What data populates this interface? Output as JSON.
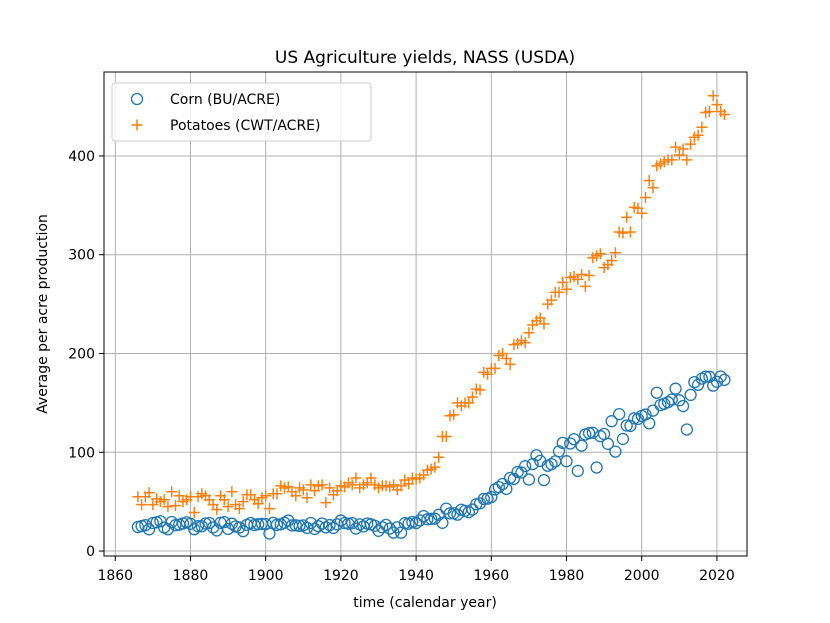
{
  "chart_data": {
    "type": "scatter",
    "title": "US Agriculture yields, NASS (USDA)",
    "xlabel": "time (calendar year)",
    "ylabel": "Average per acre production",
    "xlim": [
      1857,
      2028
    ],
    "ylim": [
      -5,
      485
    ],
    "xticks": [
      1860,
      1880,
      1900,
      1920,
      1940,
      1960,
      1980,
      2000,
      2020
    ],
    "yticks": [
      0,
      100,
      200,
      300,
      400
    ],
    "grid": true,
    "legend_position": "upper-left",
    "series": [
      {
        "name": "Corn (BU/ACRE)",
        "marker": "circle",
        "color": "#1f77b4",
        "x": [
          1866,
          1867,
          1868,
          1869,
          1870,
          1871,
          1872,
          1873,
          1874,
          1875,
          1876,
          1877,
          1878,
          1879,
          1880,
          1881,
          1882,
          1883,
          1884,
          1885,
          1886,
          1887,
          1888,
          1889,
          1890,
          1891,
          1892,
          1893,
          1894,
          1895,
          1896,
          1897,
          1898,
          1899,
          1900,
          1901,
          1902,
          1903,
          1904,
          1905,
          1906,
          1907,
          1908,
          1909,
          1910,
          1911,
          1912,
          1913,
          1914,
          1915,
          1916,
          1917,
          1918,
          1919,
          1920,
          1921,
          1922,
          1923,
          1924,
          1925,
          1926,
          1927,
          1928,
          1929,
          1930,
          1931,
          1932,
          1933,
          1934,
          1935,
          1936,
          1937,
          1938,
          1939,
          1940,
          1941,
          1942,
          1943,
          1944,
          1945,
          1946,
          1947,
          1948,
          1949,
          1950,
          1951,
          1952,
          1953,
          1954,
          1955,
          1956,
          1957,
          1958,
          1959,
          1960,
          1961,
          1962,
          1963,
          1964,
          1965,
          1966,
          1967,
          1968,
          1969,
          1970,
          1971,
          1972,
          1973,
          1974,
          1975,
          1976,
          1977,
          1978,
          1979,
          1980,
          1981,
          1982,
          1983,
          1984,
          1985,
          1986,
          1987,
          1988,
          1989,
          1990,
          1991,
          1992,
          1993,
          1994,
          1995,
          1996,
          1997,
          1998,
          1999,
          2000,
          2001,
          2002,
          2003,
          2004,
          2005,
          2006,
          2007,
          2008,
          2009,
          2010,
          2011,
          2012,
          2013,
          2014,
          2015,
          2016,
          2017,
          2018,
          2019,
          2020,
          2021,
          2022
        ],
        "y": [
          24.3,
          25.3,
          26.2,
          22.0,
          28.4,
          29.1,
          30.2,
          23.8,
          22.1,
          29.4,
          26.2,
          26.7,
          27.9,
          29.2,
          27.6,
          22.1,
          25.2,
          25.1,
          27.9,
          28.4,
          23.9,
          20.9,
          28.6,
          29.3,
          22.5,
          27.7,
          24.9,
          23.8,
          20.1,
          26.5,
          28.4,
          26.4,
          27.2,
          27.5,
          27.3,
          17.8,
          28.5,
          26.6,
          27.1,
          28.6,
          30.9,
          26.0,
          26.1,
          25.5,
          26.0,
          23.4,
          28.4,
          22.4,
          25.2,
          27.9,
          24.0,
          26.3,
          23.4,
          27.1,
          30.9,
          28.4,
          27.7,
          28.3,
          22.8,
          27.0,
          25.0,
          27.9,
          27.1,
          25.6,
          20.5,
          24.1,
          26.5,
          22.8,
          18.7,
          24.1,
          18.6,
          28.2,
          27.7,
          29.4,
          28.4,
          31.1,
          35.4,
          32.2,
          32.7,
          32.8,
          36.7,
          28.6,
          43.0,
          38.2,
          38.2,
          36.9,
          41.8,
          40.7,
          39.4,
          42.0,
          47.4,
          48.3,
          52.8,
          53.1,
          54.7,
          62.4,
          64.7,
          67.9,
          62.9,
          74.1,
          73.1,
          80.1,
          79.5,
          85.9,
          72.4,
          88.1,
          97.0,
          91.3,
          71.9,
          86.4,
          88.0,
          90.8,
          101.0,
          109.5,
          91.0,
          108.9,
          113.2,
          81.1,
          106.7,
          118.0,
          119.4,
          119.8,
          84.6,
          116.3,
          118.5,
          108.6,
          131.5,
          100.7,
          138.6,
          113.5,
          127.1,
          126.7,
          134.4,
          133.8,
          136.9,
          138.2,
          129.3,
          142.2,
          160.3,
          147.9,
          149.1,
          150.7,
          153.3,
          164.4,
          152.6,
          146.8,
          123.1,
          158.1,
          171.0,
          168.4,
          174.6,
          176.6,
          176.4,
          167.5,
          171.4,
          176.7,
          173.3
        ]
      },
      {
        "name": "Potatoes (CWT/ACRE)",
        "marker": "plus",
        "color": "#ff7f0e",
        "x": [
          1866,
          1867,
          1868,
          1869,
          1870,
          1871,
          1872,
          1873,
          1874,
          1875,
          1876,
          1877,
          1878,
          1879,
          1880,
          1881,
          1882,
          1883,
          1884,
          1885,
          1886,
          1887,
          1888,
          1889,
          1890,
          1891,
          1892,
          1893,
          1894,
          1895,
          1896,
          1897,
          1898,
          1899,
          1900,
          1901,
          1902,
          1903,
          1904,
          1905,
          1906,
          1907,
          1908,
          1909,
          1910,
          1911,
          1912,
          1913,
          1914,
          1915,
          1916,
          1917,
          1918,
          1919,
          1920,
          1921,
          1922,
          1923,
          1924,
          1925,
          1926,
          1927,
          1928,
          1929,
          1930,
          1931,
          1932,
          1933,
          1934,
          1935,
          1936,
          1937,
          1938,
          1939,
          1940,
          1941,
          1942,
          1943,
          1944,
          1945,
          1946,
          1947,
          1948,
          1949,
          1950,
          1951,
          1952,
          1953,
          1954,
          1955,
          1956,
          1957,
          1958,
          1959,
          1960,
          1961,
          1962,
          1963,
          1964,
          1965,
          1966,
          1967,
          1968,
          1969,
          1970,
          1971,
          1972,
          1973,
          1974,
          1975,
          1976,
          1977,
          1978,
          1979,
          1980,
          1981,
          1982,
          1983,
          1984,
          1985,
          1986,
          1987,
          1988,
          1989,
          1990,
          1991,
          1992,
          1993,
          1994,
          1995,
          1996,
          1997,
          1998,
          1999,
          2000,
          2001,
          2002,
          2003,
          2004,
          2005,
          2006,
          2007,
          2008,
          2009,
          2010,
          2011,
          2012,
          2013,
          2014,
          2015,
          2016,
          2017,
          2018,
          2019,
          2020,
          2021,
          2022
        ],
        "y": [
          55,
          47,
          55,
          59,
          47,
          53,
          50,
          52,
          45,
          60,
          46,
          56,
          50,
          52,
          55,
          39,
          55,
          58,
          56,
          52,
          47,
          42,
          56,
          52,
          45,
          60,
          47,
          43,
          50,
          57,
          57,
          52,
          48,
          54,
          56,
          43,
          58,
          58,
          66,
          64,
          65,
          60,
          56,
          64,
          62,
          54,
          67,
          61,
          66,
          67,
          49,
          64,
          57,
          61,
          66,
          65,
          69,
          67,
          74,
          64,
          67,
          69,
          74,
          67,
          64,
          66,
          66,
          65,
          67,
          62,
          66,
          72,
          68,
          74,
          73,
          74,
          77,
          82,
          83,
          85,
          95,
          116,
          116,
          137,
          138,
          150,
          147,
          150,
          150,
          156,
          164,
          163,
          181,
          179,
          185,
          185,
          198,
          200,
          195,
          189,
          209,
          210,
          213,
          211,
          221,
          229,
          233,
          236,
          230,
          250,
          254,
          262,
          262,
          272,
          265,
          277,
          278,
          275,
          280,
          268,
          279,
          297,
          299,
          301,
          287,
          290,
          294,
          302,
          323,
          322,
          338,
          323,
          348,
          347,
          342,
          358,
          375,
          368,
          390,
          392,
          394,
          396,
          396,
          409,
          401,
          407,
          396,
          412,
          419,
          421,
          429,
          444,
          445,
          461,
          452,
          445,
          442
        ]
      }
    ]
  }
}
